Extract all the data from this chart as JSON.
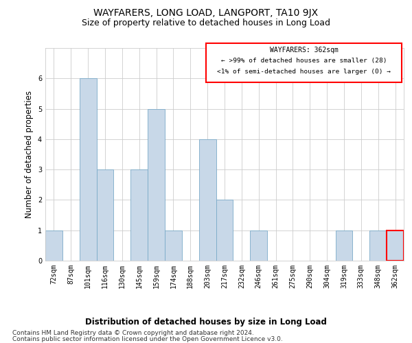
{
  "title": "WAYFARERS, LONG LOAD, LANGPORT, TA10 9JX",
  "subtitle": "Size of property relative to detached houses in Long Load",
  "xlabel": "Distribution of detached houses by size in Long Load",
  "ylabel": "Number of detached properties",
  "categories": [
    "72sqm",
    "87sqm",
    "101sqm",
    "116sqm",
    "130sqm",
    "145sqm",
    "159sqm",
    "174sqm",
    "188sqm",
    "203sqm",
    "217sqm",
    "232sqm",
    "246sqm",
    "261sqm",
    "275sqm",
    "290sqm",
    "304sqm",
    "319sqm",
    "333sqm",
    "348sqm",
    "362sqm"
  ],
  "values": [
    1,
    0,
    6,
    3,
    0,
    3,
    5,
    1,
    0,
    4,
    2,
    0,
    1,
    0,
    0,
    0,
    0,
    1,
    0,
    1,
    1
  ],
  "bar_color": "#c8d8e8",
  "bar_edge_color": "#7aaac8",
  "highlight_index": 20,
  "ylim": [
    0,
    7
  ],
  "yticks": [
    0,
    1,
    2,
    3,
    4,
    5,
    6,
    7
  ],
  "grid_color": "#cccccc",
  "legend_text_line1": "WAYFARERS: 362sqm",
  "legend_text_line2": "← >99% of detached houses are smaller (28)",
  "legend_text_line3": "<1% of semi-detached houses are larger (0) →",
  "legend_box_color": "red",
  "footer_line1": "Contains HM Land Registry data © Crown copyright and database right 2024.",
  "footer_line2": "Contains public sector information licensed under the Open Government Licence v3.0.",
  "background_color": "#ffffff",
  "title_fontsize": 10,
  "subtitle_fontsize": 9,
  "axis_label_fontsize": 8.5,
  "tick_fontsize": 7,
  "footer_fontsize": 6.5
}
